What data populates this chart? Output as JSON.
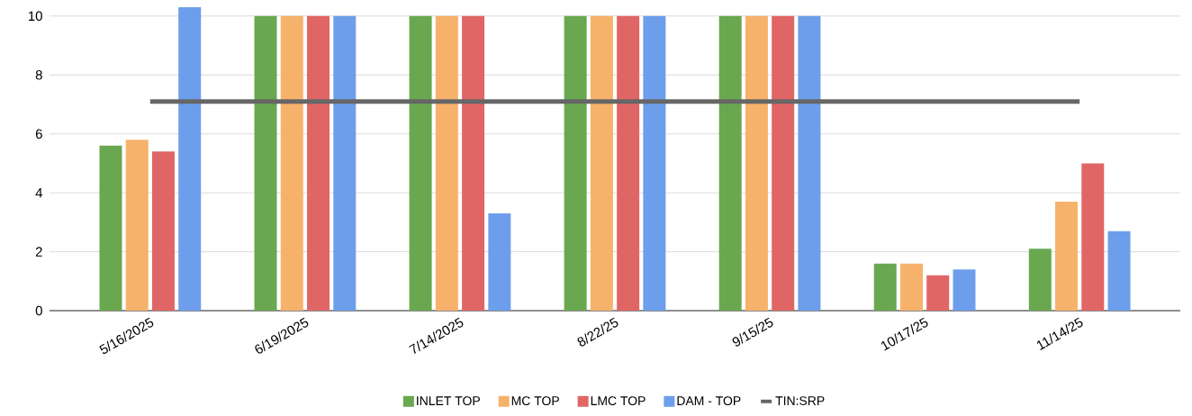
{
  "chart_data": {
    "type": "bar",
    "categories": [
      "5/16/2025",
      "6/19/2025",
      "7/14/2025",
      "8/22/25",
      "9/15/25",
      "10/17/25",
      "11/14/25"
    ],
    "series": [
      {
        "name": "INLET TOP",
        "color": "#6aa84f",
        "values": [
          5.6,
          10,
          10,
          10,
          10,
          1.6,
          2.1
        ]
      },
      {
        "name": "MC TOP",
        "color": "#f6b26b",
        "values": [
          5.8,
          10,
          10,
          10,
          10,
          1.6,
          3.7
        ]
      },
      {
        "name": "LMC TOP",
        "color": "#e06666",
        "values": [
          5.4,
          10,
          10,
          10,
          10,
          1.2,
          5.0
        ]
      },
      {
        "name": "DAM - TOP",
        "color": "#6d9eeb",
        "values": [
          10.3,
          10,
          3.3,
          10,
          10,
          1.4,
          2.7
        ]
      },
      {
        "name": "TIN:SRP",
        "type": "line",
        "color": "#666666",
        "values": [
          7.1,
          7.1,
          7.1,
          7.1,
          7.1,
          7.1,
          7.1
        ]
      }
    ],
    "ylim": [
      0,
      10.3
    ],
    "yticks": [
      0,
      2,
      4,
      6,
      8,
      10
    ],
    "grid": "y",
    "legend": "bottom"
  }
}
